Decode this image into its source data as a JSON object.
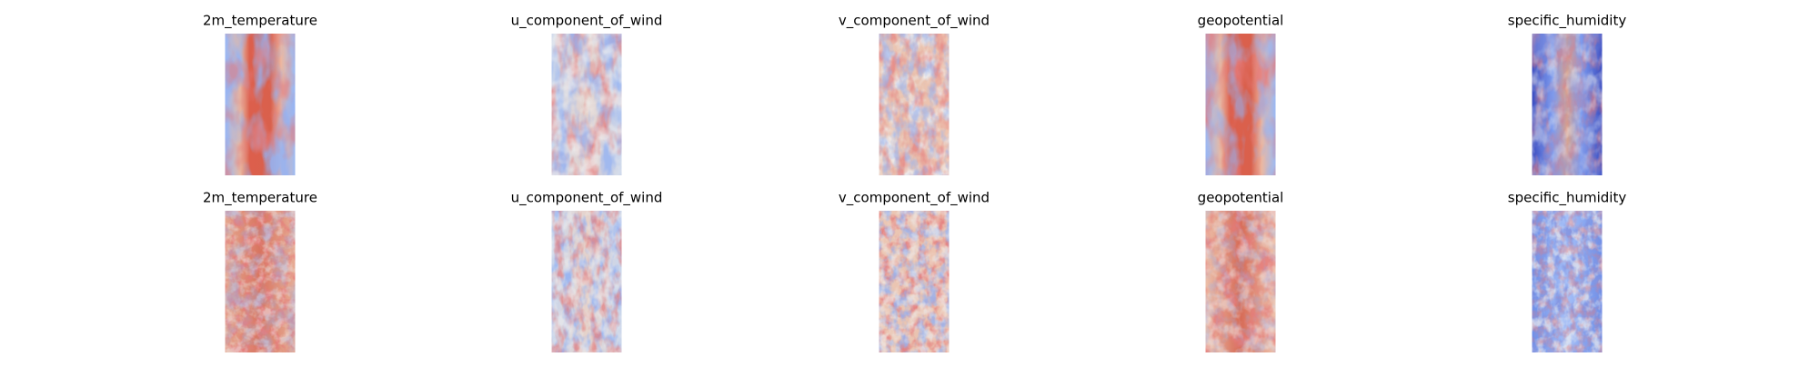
{
  "rows": [
    {
      "titles": [
        "2m_temperature",
        "u_component_of_wind",
        "v_component_of_wind",
        "geopotential",
        "specific_humidity"
      ]
    },
    {
      "titles": [
        "2m_temperature",
        "u_component_of_wind",
        "v_component_of_wind",
        "geopotential",
        "specific_humidity"
      ]
    }
  ]
}
